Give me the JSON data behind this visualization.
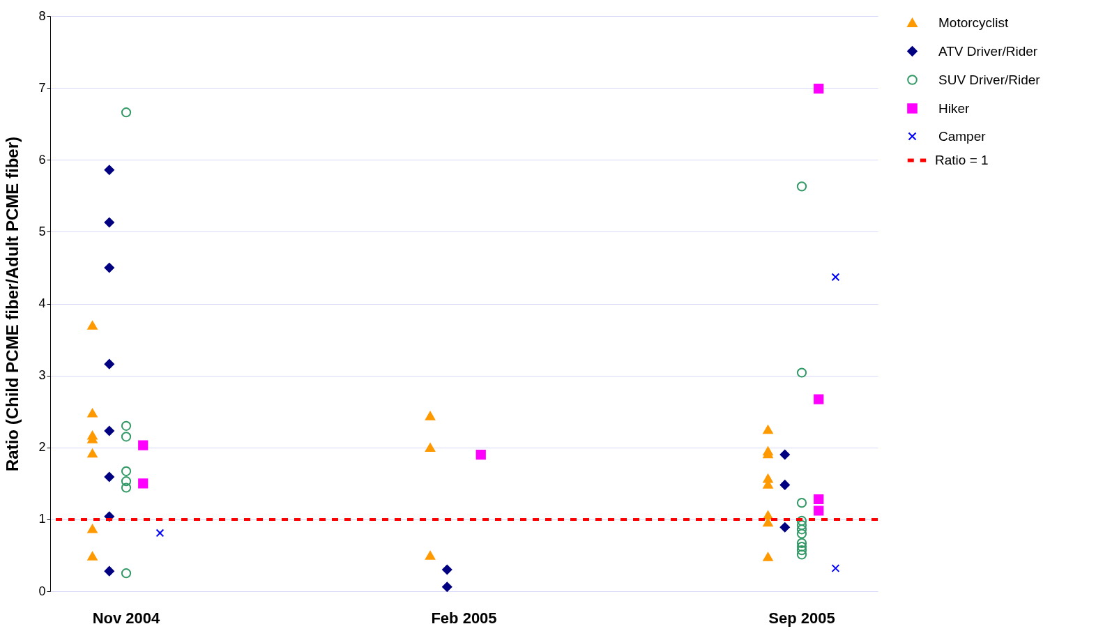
{
  "chart_data": {
    "type": "scatter",
    "ylabel": "Ratio (Child PCME fiber/Adult PCME fiber)",
    "categories": [
      "Nov 2004",
      "Feb 2005",
      "Sep 2005"
    ],
    "ylim": [
      0,
      8
    ],
    "yticks": [
      0,
      1,
      2,
      3,
      4,
      5,
      6,
      7,
      8
    ],
    "grid": "y",
    "legend": "right",
    "series": [
      {
        "name": "Motorcyclist",
        "color": "#ff9900",
        "marker": "triangle",
        "x": [
          "Nov 2004",
          "Nov 2004",
          "Nov 2004",
          "Nov 2004",
          "Nov 2004",
          "Nov 2004",
          "Nov 2004",
          "Feb 2005",
          "Feb 2005",
          "Feb 2005",
          "Sep 2005",
          "Sep 2005",
          "Sep 2005",
          "Sep 2005",
          "Sep 2005",
          "Sep 2005",
          "Sep 2005",
          "Sep 2005"
        ],
        "values": [
          3.7,
          2.48,
          2.17,
          2.12,
          1.92,
          0.87,
          0.49,
          2.44,
          2.0,
          0.5,
          2.25,
          1.95,
          1.91,
          1.57,
          1.49,
          1.06,
          0.96,
          0.48
        ]
      },
      {
        "name": "ATV Driver/Rider",
        "color": "#000080",
        "marker": "diamond",
        "x": [
          "Nov 2004",
          "Nov 2004",
          "Nov 2004",
          "Nov 2004",
          "Nov 2004",
          "Nov 2004",
          "Nov 2004",
          "Nov 2004",
          "Feb 2005",
          "Feb 2005",
          "Sep 2005",
          "Sep 2005",
          "Sep 2005"
        ],
        "values": [
          5.86,
          5.13,
          4.5,
          3.16,
          2.23,
          1.59,
          1.04,
          0.28,
          0.3,
          0.06,
          1.9,
          1.48,
          0.89
        ]
      },
      {
        "name": "SUV Driver/Rider",
        "color": "#339966",
        "marker": "circle",
        "x": [
          "Nov 2004",
          "Nov 2004",
          "Nov 2004",
          "Nov 2004",
          "Nov 2004",
          "Nov 2004",
          "Nov 2004",
          "Sep 2005",
          "Sep 2005",
          "Sep 2005",
          "Sep 2005",
          "Sep 2005",
          "Sep 2005",
          "Sep 2005",
          "Sep 2005",
          "Sep 2005",
          "Sep 2005",
          "Sep 2005"
        ],
        "values": [
          6.66,
          2.3,
          2.15,
          1.67,
          1.53,
          1.44,
          0.25,
          5.63,
          3.04,
          1.23,
          0.98,
          0.92,
          0.86,
          0.8,
          0.67,
          0.62,
          0.57,
          0.51
        ]
      },
      {
        "name": "Hiker",
        "color": "#ff00ff",
        "marker": "square",
        "x": [
          "Nov 2004",
          "Nov 2004",
          "Feb 2005",
          "Sep 2005",
          "Sep 2005",
          "Sep 2005",
          "Sep 2005"
        ],
        "values": [
          2.03,
          1.5,
          1.9,
          6.99,
          2.67,
          1.28,
          1.12
        ]
      },
      {
        "name": "Camper",
        "color": "#0000ff",
        "marker": "cross",
        "x": [
          "Nov 2004",
          "Sep 2005",
          "Sep 2005"
        ],
        "values": [
          0.81,
          4.37,
          0.32
        ]
      }
    ],
    "ref_lines": [
      {
        "axis": "y",
        "value": 1,
        "label": "Ratio = 1",
        "color": "#ff0000",
        "line_style": "dashed"
      }
    ]
  }
}
